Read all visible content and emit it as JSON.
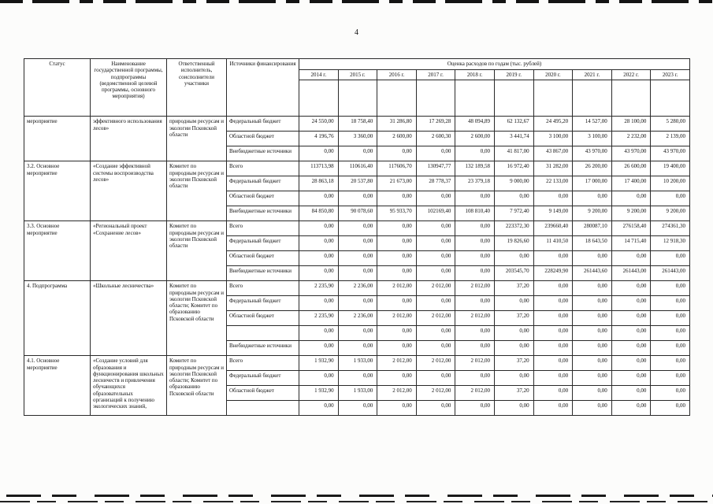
{
  "page": {
    "number": "4"
  },
  "table": {
    "headers": {
      "status": "Статус",
      "name": "Наименование государственной программы, подпрограммы (ведомственной целевой программы, основного мероприятия)",
      "executor": "Ответственный исполнитель, соисполнители участники",
      "source": "Источники финансирования",
      "years_title": "Оценка расходов по годам (тыс. рублей)",
      "years": [
        "2014 г.",
        "2015 г.",
        "2016 г.",
        "2017 г.",
        "2018 г.",
        "2019 г.",
        "2020 г.",
        "2021 г.",
        "2022 г.",
        "2023 г."
      ]
    },
    "blocks": [
      {
        "status": "мероприятие",
        "name": "эффективного использования лесов»",
        "executor": "природным ресурсам и экологии Псковской области",
        "rows": [
          {
            "source": "Федеральный бюджет",
            "values": [
              "24 550,00",
              "18 758,40",
              "31 286,80",
              "17 269,28",
              "48 094,89",
              "62 132,67",
              "24 495,20",
              "14 527,00",
              "28 100,00",
              "5 280,00"
            ]
          },
          {
            "source": "Областной бюджет",
            "values": [
              "4 196,76",
              "3 360,00",
              "2 600,00",
              "2 600,30",
              "2 600,00",
              "3 441,74",
              "3 100,00",
              "3 100,00",
              "2 232,00",
              "2 139,00"
            ]
          },
          {
            "source": "Внебюджетные источники",
            "values": [
              "0,00",
              "0,00",
              "0,00",
              "0,00",
              "0,00",
              "41 817,00",
              "43 867,00",
              "43 970,00",
              "43 970,00",
              "43 970,00"
            ]
          }
        ]
      },
      {
        "status": "3.2. Основное мероприятие",
        "name": "«Создание эффективной системы воспроизводства лесов»",
        "executor": "Комитет по природным ресурсам и экологии Псковской области",
        "rows": [
          {
            "source": "Всего",
            "values": [
              "113713,98",
              "110616,40",
              "117606,70",
              "130947,77",
              "132 189,58",
              "16 972,40",
              "31 282,00",
              "26 200,00",
              "26 600,00",
              "19 400,00"
            ]
          },
          {
            "source": "Федеральный бюджет",
            "values": [
              "28 863,18",
              "20 537,80",
              "21 673,00",
              "28 778,37",
              "23 379,18",
              "9 000,00",
              "22 133,00",
              "17 000,00",
              "17 400,00",
              "10 200,00"
            ]
          },
          {
            "source": "Областной бюджет",
            "values": [
              "0,00",
              "0,00",
              "0,00",
              "0,00",
              "0,00",
              "0,00",
              "0,00",
              "0,00",
              "0,00",
              "0,00"
            ]
          },
          {
            "source": "Внебюджетные источники",
            "values": [
              "84 850,80",
              "90 078,60",
              "95 933,70",
              "102169,40",
              "108 810,40",
              "7 972,40",
              "9 149,00",
              "9 200,00",
              "9 200,00",
              "9 200,00"
            ]
          }
        ]
      },
      {
        "status": "3.3. Основное мероприятие",
        "name": "«Региональный проект «Сохранение лесов»",
        "executor": "Комитет по природным ресурсам и экологии Псковской области",
        "rows": [
          {
            "source": "Всего",
            "values": [
              "0,00",
              "0,00",
              "0,00",
              "0,00",
              "0,00",
              "223372,30",
              "239660,40",
              "280087,10",
              "276158,40",
              "274361,30"
            ]
          },
          {
            "source": "Федеральный бюджет",
            "values": [
              "0,00",
              "0,00",
              "0,00",
              "0,00",
              "0,00",
              "19 826,60",
              "11 410,50",
              "18 643,50",
              "14 715,40",
              "12 918,30"
            ]
          },
          {
            "source": "Областной бюджет",
            "values": [
              "0,00",
              "0,00",
              "0,00",
              "0,00",
              "0,00",
              "0,00",
              "0,00",
              "0,00",
              "0,00",
              "0,00"
            ]
          },
          {
            "source": "Внебюджетные источники",
            "values": [
              "0,00",
              "0,00",
              "0,00",
              "0,00",
              "0,00",
              "203545,70",
              "228249,90",
              "261443,60",
              "261443,00",
              "261443,00"
            ]
          }
        ]
      },
      {
        "status": "4. Подпрограмма",
        "name": "«Школьные лесничества»",
        "executor": "Комитет по природным ресурсам и экологии Псковской области; Комитет по образованию Псковской области",
        "rows": [
          {
            "source": "Всего",
            "values": [
              "2 235,90",
              "2 236,00",
              "2 012,00",
              "2 012,00",
              "2 012,00",
              "37,20",
              "0,00",
              "0,00",
              "0,00",
              "0,00"
            ]
          },
          {
            "source": "Федеральный бюджет",
            "values": [
              "0,00",
              "0,00",
              "0,00",
              "0,00",
              "0,00",
              "0,00",
              "0,00",
              "0,00",
              "0,00",
              "0,00"
            ]
          },
          {
            "source": "Областной бюджет",
            "values": [
              "2 235,90",
              "2 236,00",
              "2 012,00",
              "2 012,00",
              "2 012,00",
              "37,20",
              "0,00",
              "0,00",
              "0,00",
              "0,00"
            ]
          },
          {
            "source": "",
            "values": [
              "0,00",
              "0,00",
              "0,00",
              "0,00",
              "0,00",
              "0,00",
              "0,00",
              "0,00",
              "0,00",
              "0,00"
            ]
          },
          {
            "source": "Внебюджетные источники",
            "values": [
              "0,00",
              "0,00",
              "0,00",
              "0,00",
              "0,00",
              "0,00",
              "0,00",
              "0,00",
              "0,00",
              "0,00"
            ]
          }
        ]
      },
      {
        "status": "4.1. Основное мероприятие",
        "name": "«Создание условий для образования и функционирования школьных лесничеств и привлечения обучающихся образовательных организаций к получению экологических знаний,",
        "executor": "Комитет по природным ресурсам и экологии Псковской области; Комитет по образованию Псковской области",
        "rows": [
          {
            "source": "Всего",
            "values": [
              "1 932,90",
              "1 933,00",
              "2 012,00",
              "2 012,00",
              "2 012,00",
              "37,20",
              "0,00",
              "0,00",
              "0,00",
              "0,00"
            ]
          },
          {
            "source": "Федеральный бюджет",
            "values": [
              "0,00",
              "0,00",
              "0,00",
              "0,00",
              "0,00",
              "0,00",
              "0,00",
              "0,00",
              "0,00",
              "0,00"
            ]
          },
          {
            "source": "Областной бюджет",
            "values": [
              "1 932,90",
              "1 933,00",
              "2 012,00",
              "2 012,00",
              "2 012,00",
              "37,20",
              "0,00",
              "0,00",
              "0,00",
              "0,00"
            ]
          },
          {
            "source": "",
            "values": [
              "0,00",
              "0,00",
              "0,00",
              "0,00",
              "0,00",
              "0,00",
              "0,00",
              "0,00",
              "0,00",
              "0,00"
            ]
          }
        ]
      }
    ]
  }
}
